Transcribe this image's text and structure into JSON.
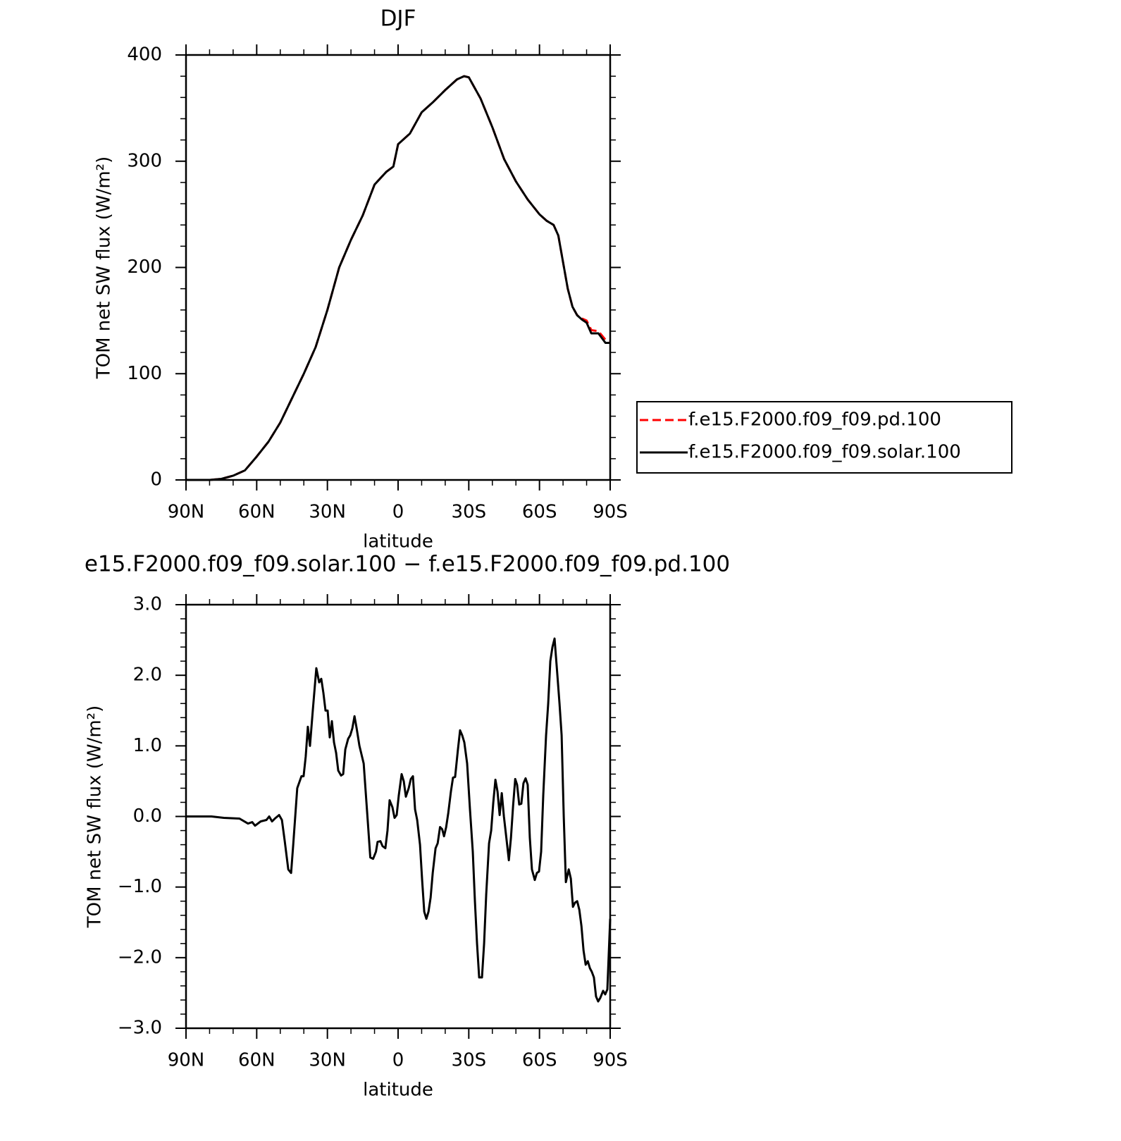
{
  "chart_data": [
    {
      "type": "line",
      "title": "DJF",
      "xlabel": "latitude",
      "ylabel": "TOM net SW flux (W/m²)",
      "x": [
        90,
        85,
        80,
        75,
        70,
        65,
        60,
        55,
        50,
        45,
        40,
        35,
        30,
        25,
        20,
        15,
        10,
        5,
        2,
        0,
        -5,
        -10,
        -15,
        -20,
        -25,
        -28,
        -30,
        -35,
        -40,
        -45,
        -50,
        -55,
        -60,
        -63,
        -66,
        -68,
        -70,
        -72,
        -74,
        -76,
        -78,
        -80,
        -82,
        -85,
        -88,
        -90
      ],
      "series": [
        {
          "name": "f.e15.F2000.f09_f09.pd.100",
          "color": "#ff0000",
          "line_style": "dashed",
          "values": [
            0,
            0,
            0,
            1,
            4,
            9,
            22,
            36,
            54,
            77,
            100,
            125,
            160,
            200,
            226,
            249,
            278,
            290,
            295,
            316,
            326,
            346,
            356,
            367,
            377,
            380,
            379,
            359,
            332,
            302,
            281,
            264,
            250,
            244,
            240,
            230,
            205,
            180,
            163,
            155,
            152,
            150,
            141,
            140,
            132,
            131
          ]
        },
        {
          "name": "f.e15.F2000.f09_f09.solar.100",
          "color": "#000000",
          "line_style": "solid",
          "values": [
            0,
            0,
            0,
            1,
            4,
            9,
            22,
            36,
            54,
            77,
            100,
            125,
            160,
            200,
            226,
            249,
            278,
            290,
            295,
            316,
            326,
            346,
            356,
            367,
            377,
            380,
            379,
            359,
            332,
            302,
            281,
            264,
            250,
            244,
            240,
            230,
            205,
            180,
            163,
            155,
            151,
            148,
            138,
            138,
            129,
            129
          ]
        }
      ],
      "xlim": [
        90,
        -90
      ],
      "xticks": [
        {
          "value": 90,
          "label": "90N"
        },
        {
          "value": 60,
          "label": "60N"
        },
        {
          "value": 30,
          "label": "30N"
        },
        0,
        {
          "value": -30,
          "label": "30S"
        },
        {
          "value": -60,
          "label": "60S"
        },
        {
          "value": -90,
          "label": "90S"
        }
      ],
      "xminorticks": [
        80,
        70,
        50,
        40,
        20,
        10,
        -10,
        -20,
        -40,
        -50,
        -70,
        -80
      ],
      "ylim": [
        0,
        400
      ],
      "yticks": [
        0,
        100,
        200,
        300,
        400
      ],
      "yminorticks": [
        20,
        40,
        60,
        80,
        120,
        140,
        160,
        180,
        220,
        240,
        260,
        280,
        320,
        340,
        360,
        380
      ],
      "legend": "outside-right"
    },
    {
      "type": "line",
      "title": "e15.F2000.f09_f09.solar.100 − f.e15.F2000.f09_f09.pd.100",
      "xlabel": "latitude",
      "ylabel": "TOM net SW flux (W/m²)",
      "color": "#000000",
      "x": [
        90,
        79.2,
        73.9,
        67.3,
        63.7,
        61.9,
        60.7,
        58.3,
        55.9,
        54.7,
        53.5,
        52.3,
        50.5,
        49.3,
        48.1,
        46.6,
        45.4,
        44.5,
        42.8,
        41,
        40.1,
        39.2,
        38.3,
        37.4,
        36.2,
        34.7,
        33.5,
        32.6,
        31.7,
        30.8,
        29.9,
        29,
        28.1,
        27.2,
        26.3,
        25.4,
        24.2,
        23.3,
        22.4,
        21.2,
        20.3,
        19.4,
        18.5,
        17.6,
        16.4,
        14.6,
        12.8,
        11.8,
        10.6,
        9.4,
        8.7,
        7.5,
        6.6,
        5.4,
        4.5,
        3.6,
        2.4,
        1.5,
        0.6,
        -0.3,
        -1.5,
        -2.4,
        -3.3,
        -4.5,
        -5.4,
        -6.3,
        -7.2,
        -8.1,
        -9.3,
        -10.2,
        -11.1,
        -12,
        -12.9,
        -13.8,
        -14.7,
        -15.9,
        -16.8,
        -17.8,
        -18.7,
        -19.5,
        -20.4,
        -21.3,
        -22.4,
        -23.3,
        -24.2,
        -25.4,
        -26.3,
        -27.2,
        -28.1,
        -29.3,
        -30.5,
        -31.7,
        -32.6,
        -33.5,
        -34.4,
        -35.6,
        -36.5,
        -37.4,
        -38.6,
        -39.5,
        -40.4,
        -41.3,
        -42.2,
        -43.1,
        -44,
        -44.9,
        -46.1,
        -47,
        -47.9,
        -48.8,
        -49.7,
        -50.5,
        -51.4,
        -52.3,
        -53.2,
        -54.1,
        -55,
        -55.9,
        -56.8,
        -58,
        -58.9,
        -59.8,
        -60.7,
        -61.6,
        -62.8,
        -63.7,
        -64.6,
        -65.5,
        -66.4,
        -67.6,
        -68.5,
        -69.4,
        -70.3,
        -71.2,
        -72.4,
        -73.3,
        -74.2,
        -75.1,
        -76,
        -76.9,
        -77.8,
        -78.7,
        -79.6,
        -80.5,
        -81.4,
        -82.2,
        -83.1,
        -84,
        -84.9,
        -85.8,
        -87,
        -87.9,
        -88.8,
        -90
      ],
      "values": [
        0,
        0,
        -0.02,
        -0.03,
        -0.1,
        -0.08,
        -0.13,
        -0.07,
        -0.05,
        0,
        -0.07,
        -0.03,
        0.02,
        -0.05,
        -0.35,
        -0.75,
        -0.8,
        -0.4,
        0.4,
        0.57,
        0.57,
        0.85,
        1.27,
        1.0,
        1.5,
        2.1,
        1.9,
        1.95,
        1.75,
        1.5,
        1.5,
        1.12,
        1.35,
        1.05,
        0.9,
        0.65,
        0.58,
        0.6,
        0.95,
        1.1,
        1.15,
        1.25,
        1.42,
        1.25,
        1.0,
        0.75,
        -0.1,
        -0.58,
        -0.6,
        -0.5,
        -0.36,
        -0.35,
        -0.42,
        -0.45,
        -0.2,
        0.23,
        0.13,
        -0.02,
        0.02,
        0.3,
        0.6,
        0.5,
        0.28,
        0.4,
        0.53,
        0.57,
        0.1,
        -0.05,
        -0.4,
        -0.9,
        -1.35,
        -1.45,
        -1.35,
        -1.15,
        -0.8,
        -0.45,
        -0.38,
        -0.15,
        -0.18,
        -0.28,
        -0.15,
        0.05,
        0.35,
        0.55,
        0.56,
        0.95,
        1.22,
        1.15,
        1.05,
        0.75,
        0.1,
        -0.5,
        -1.2,
        -1.8,
        -2.28,
        -2.28,
        -1.8,
        -1.1,
        -0.38,
        -0.2,
        0.2,
        0.52,
        0.35,
        0.02,
        0.33,
        0,
        -0.35,
        -0.62,
        -0.3,
        0.15,
        0.53,
        0.45,
        0.17,
        0.18,
        0.47,
        0.54,
        0.45,
        -0.3,
        -0.75,
        -0.9,
        -0.8,
        -0.78,
        -0.5,
        0.3,
        1.15,
        1.6,
        2.2,
        2.4,
        2.52,
        2.0,
        1.6,
        1.15,
        0,
        -0.93,
        -0.75,
        -0.88,
        -1.28,
        -1.22,
        -1.2,
        -1.32,
        -1.55,
        -1.9,
        -2.1,
        -2.05,
        -2.15,
        -2.2,
        -2.28,
        -2.55,
        -2.62,
        -2.57,
        -2.47,
        -2.52,
        -2.45,
        -1.45
      ],
      "xlim": [
        90,
        -90
      ],
      "xticks": [
        {
          "value": 90,
          "label": "90N"
        },
        {
          "value": 60,
          "label": "60N"
        },
        {
          "value": 30,
          "label": "30N"
        },
        0,
        {
          "value": -30,
          "label": "30S"
        },
        {
          "value": -60,
          "label": "60S"
        },
        {
          "value": -90,
          "label": "90S"
        }
      ],
      "xminorticks": [
        80,
        70,
        50,
        40,
        20,
        10,
        -10,
        -20,
        -40,
        -50,
        -70,
        -80
      ],
      "ylim": [
        -3,
        3
      ],
      "yticks": [
        {
          "value": -3,
          "label": "−3.0"
        },
        {
          "value": -2,
          "label": "−2.0"
        },
        {
          "value": -1,
          "label": "−1.0"
        },
        {
          "value": 0,
          "label": "0.0"
        },
        {
          "value": 1,
          "label": "1.0"
        },
        {
          "value": 2,
          "label": "2.0"
        },
        {
          "value": 3,
          "label": "3.0"
        }
      ],
      "yminorticks": [
        -2.8,
        -2.6,
        -2.4,
        -2.2,
        -1.8,
        -1.6,
        -1.4,
        -1.2,
        -0.8,
        -0.6,
        -0.4,
        -0.2,
        0.2,
        0.4,
        0.6,
        0.8,
        1.2,
        1.4,
        1.6,
        1.8,
        2.2,
        2.4,
        2.6,
        2.8
      ]
    }
  ]
}
